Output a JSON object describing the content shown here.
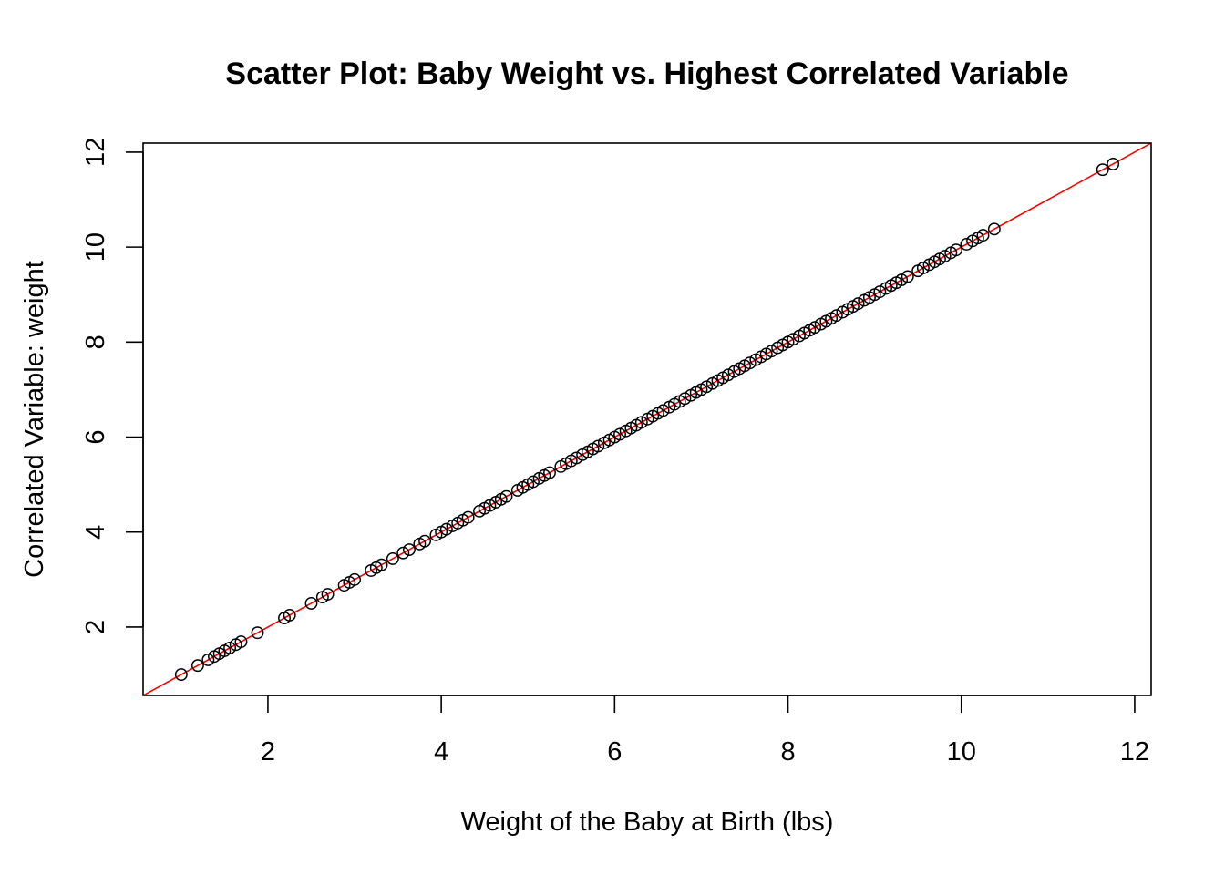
{
  "chart_data": {
    "type": "scatter",
    "title": "Scatter Plot: Baby Weight vs. Highest Correlated Variable",
    "xlabel": "Weight of the Baby at Birth (lbs)",
    "ylabel": "Correlated Variable: weight",
    "xlim": [
      0.56,
      12.19
    ],
    "ylim": [
      0.56,
      12.19
    ],
    "x_ticks": [
      2,
      4,
      6,
      8,
      10,
      12
    ],
    "y_ticks": [
      2,
      4,
      6,
      8,
      10,
      12
    ],
    "grid": false,
    "point_color": "#000000",
    "fit_line": {
      "intercept": 0,
      "slope": 1,
      "color": "#ff0000"
    },
    "x": [
      1.0,
      1.19,
      1.31,
      1.38,
      1.44,
      1.5,
      1.56,
      1.63,
      1.69,
      1.88,
      2.19,
      2.25,
      2.5,
      2.63,
      2.69,
      2.88,
      2.94,
      3.0,
      3.19,
      3.25,
      3.31,
      3.44,
      3.56,
      3.63,
      3.75,
      3.81,
      3.94,
      4.0,
      4.06,
      4.13,
      4.19,
      4.25,
      4.31,
      4.44,
      4.5,
      4.56,
      4.63,
      4.69,
      4.75,
      4.88,
      4.94,
      5.0,
      5.06,
      5.13,
      5.19,
      5.25,
      5.38,
      5.44,
      5.5,
      5.56,
      5.63,
      5.69,
      5.75,
      5.81,
      5.88,
      5.94,
      6.0,
      6.06,
      6.13,
      6.19,
      6.25,
      6.31,
      6.38,
      6.44,
      6.5,
      6.56,
      6.63,
      6.69,
      6.75,
      6.81,
      6.88,
      6.94,
      7.0,
      7.06,
      7.13,
      7.19,
      7.25,
      7.31,
      7.38,
      7.44,
      7.5,
      7.56,
      7.63,
      7.69,
      7.75,
      7.81,
      7.88,
      7.94,
      8.0,
      8.06,
      8.13,
      8.19,
      8.25,
      8.31,
      8.38,
      8.44,
      8.5,
      8.56,
      8.63,
      8.69,
      8.75,
      8.81,
      8.88,
      8.94,
      9.0,
      9.06,
      9.13,
      9.19,
      9.25,
      9.31,
      9.38,
      9.5,
      9.56,
      9.63,
      9.69,
      9.75,
      9.81,
      9.88,
      9.94,
      10.06,
      10.13,
      10.19,
      10.25,
      10.38,
      11.63,
      11.75
    ],
    "y": [
      1.0,
      1.19,
      1.31,
      1.38,
      1.44,
      1.5,
      1.56,
      1.63,
      1.69,
      1.88,
      2.19,
      2.25,
      2.5,
      2.63,
      2.69,
      2.88,
      2.94,
      3.0,
      3.19,
      3.25,
      3.31,
      3.44,
      3.56,
      3.63,
      3.75,
      3.81,
      3.94,
      4.0,
      4.06,
      4.13,
      4.19,
      4.25,
      4.31,
      4.44,
      4.5,
      4.56,
      4.63,
      4.69,
      4.75,
      4.88,
      4.94,
      5.0,
      5.06,
      5.13,
      5.19,
      5.25,
      5.38,
      5.44,
      5.5,
      5.56,
      5.63,
      5.69,
      5.75,
      5.81,
      5.88,
      5.94,
      6.0,
      6.06,
      6.13,
      6.19,
      6.25,
      6.31,
      6.38,
      6.44,
      6.5,
      6.56,
      6.63,
      6.69,
      6.75,
      6.81,
      6.88,
      6.94,
      7.0,
      7.06,
      7.13,
      7.19,
      7.25,
      7.31,
      7.38,
      7.44,
      7.5,
      7.56,
      7.63,
      7.69,
      7.75,
      7.81,
      7.88,
      7.94,
      8.0,
      8.06,
      8.13,
      8.19,
      8.25,
      8.31,
      8.38,
      8.44,
      8.5,
      8.56,
      8.63,
      8.69,
      8.75,
      8.81,
      8.88,
      8.94,
      9.0,
      9.06,
      9.13,
      9.19,
      9.25,
      9.31,
      9.38,
      9.5,
      9.56,
      9.63,
      9.69,
      9.75,
      9.81,
      9.88,
      9.94,
      10.06,
      10.13,
      10.19,
      10.25,
      10.38,
      11.63,
      11.75
    ]
  }
}
